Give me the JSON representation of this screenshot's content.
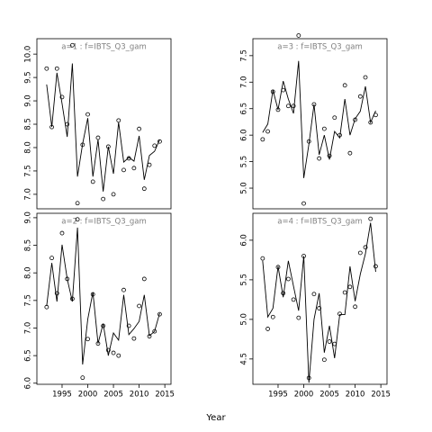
{
  "xlabel": "Year",
  "chart_data": [
    {
      "type": "line",
      "title": "a=1  :  f=IBTS_Q3_gam",
      "x": [
        1992,
        1993,
        1994,
        1995,
        1996,
        1997,
        1998,
        1999,
        2000,
        2001,
        2002,
        2003,
        2004,
        2005,
        2006,
        2007,
        2008,
        2009,
        2010,
        2011,
        2012,
        2013,
        2014
      ],
      "series": [
        {
          "marker": "circle",
          "color": "#000000",
          "values": [
            9.69,
            8.44,
            9.69,
            9.08,
            8.5,
            10.19,
            6.81,
            8.06,
            8.71,
            7.27,
            8.21,
            6.9,
            8.02,
            7.0,
            8.58,
            7.52,
            7.77,
            7.56,
            8.4,
            7.12,
            7.63,
            8.04,
            8.13
          ]
        },
        {
          "marker": "none",
          "color": "#000000",
          "values": [
            9.35,
            8.44,
            9.6,
            8.94,
            8.23,
            9.8,
            7.38,
            8.08,
            8.63,
            7.38,
            8.17,
            7.06,
            8.02,
            7.44,
            8.54,
            7.69,
            7.79,
            7.71,
            8.25,
            7.31,
            7.83,
            7.92,
            8.17
          ]
        }
      ],
      "xlim": [
        1990.1,
        2016.2
      ],
      "ylim": [
        6.69,
        10.33
      ],
      "yticks": [
        {
          "value": 7,
          "label": "7.0"
        },
        7.5,
        {
          "value": 8,
          "label": "8.0"
        },
        8.5,
        {
          "value": 9,
          "label": "9.0"
        },
        9.5,
        {
          "value": 10,
          "label": "10.0"
        }
      ]
    },
    {
      "type": "line",
      "title": "a=3  :  f=IBTS_Q3_gam",
      "x": [
        1992,
        1993,
        1994,
        1995,
        1996,
        1997,
        1998,
        1999,
        2000,
        2001,
        2002,
        2003,
        2004,
        2005,
        2006,
        2007,
        2008,
        2009,
        2010,
        2011,
        2012,
        2013,
        2014
      ],
      "series": [
        {
          "marker": "circle",
          "color": "#000000",
          "values": [
            5.92,
            6.07,
            6.82,
            6.48,
            6.85,
            6.55,
            6.55,
            7.88,
            4.71,
            5.88,
            6.58,
            5.56,
            6.12,
            5.61,
            6.33,
            6.0,
            6.94,
            5.66,
            6.29,
            6.73,
            7.09,
            6.24,
            6.38
          ]
        },
        {
          "marker": "none",
          "color": "#000000",
          "values": [
            6.05,
            6.21,
            6.85,
            6.48,
            7.02,
            6.68,
            6.41,
            7.4,
            5.19,
            5.83,
            6.58,
            5.63,
            6.0,
            5.54,
            6.07,
            5.95,
            6.68,
            6.0,
            6.31,
            6.45,
            6.92,
            6.24,
            6.46
          ]
        }
      ],
      "xlim": [
        1990.1,
        2016.2
      ],
      "ylim": [
        4.61,
        7.82
      ],
      "yticks": [
        {
          "value": 5,
          "label": "5.0"
        },
        5.5,
        {
          "value": 6,
          "label": "6.0"
        },
        6.5,
        {
          "value": 7,
          "label": "7.0"
        },
        7.5
      ]
    },
    {
      "type": "line",
      "title": "a=2  :  f=IBTS_Q3_gam",
      "x": [
        1992,
        1993,
        1994,
        1995,
        1996,
        1997,
        1998,
        1999,
        2000,
        2001,
        2002,
        2003,
        2004,
        2005,
        2006,
        2007,
        2008,
        2009,
        2010,
        2011,
        2012,
        2013,
        2014
      ],
      "series": [
        {
          "marker": "circle",
          "color": "#000000",
          "values": [
            7.38,
            8.27,
            7.63,
            8.72,
            7.89,
            7.53,
            8.97,
            6.1,
            6.8,
            7.61,
            6.72,
            7.04,
            6.6,
            6.55,
            6.5,
            7.69,
            7.04,
            6.81,
            7.4,
            7.89,
            6.85,
            6.94,
            7.25
          ]
        },
        {
          "marker": "none",
          "color": "#000000",
          "values": [
            7.4,
            8.18,
            7.48,
            8.51,
            7.89,
            7.48,
            8.82,
            6.34,
            7.16,
            7.65,
            6.72,
            7.08,
            6.5,
            6.91,
            6.78,
            7.6,
            6.88,
            6.99,
            7.12,
            7.6,
            6.86,
            6.94,
            7.27
          ]
        }
      ],
      "xlim": [
        1990.1,
        2016.2
      ],
      "ylim": [
        5.98,
        9.08
      ],
      "xticks": [
        1995,
        2000,
        2005,
        2010,
        2015
      ],
      "yticks": [
        {
          "value": 6,
          "label": "6.0"
        },
        6.5,
        {
          "value": 7,
          "label": "7.0"
        },
        7.5,
        {
          "value": 8,
          "label": "8.0"
        },
        8.5,
        {
          "value": 9,
          "label": "9.0"
        }
      ]
    },
    {
      "type": "line",
      "title": "a=4  :  f=IBTS_Q3_gam",
      "x": [
        1992,
        1993,
        1994,
        1995,
        1996,
        1997,
        1998,
        1999,
        2000,
        2001,
        2002,
        2003,
        2004,
        2005,
        2006,
        2007,
        2008,
        2009,
        2010,
        2011,
        2012,
        2013,
        2014
      ],
      "series": [
        {
          "marker": "circle",
          "color": "#000000",
          "values": [
            5.77,
            4.88,
            5.03,
            5.66,
            5.33,
            5.51,
            5.25,
            5.02,
            5.8,
            4.26,
            5.32,
            5.14,
            4.49,
            4.72,
            4.69,
            5.07,
            5.34,
            5.41,
            5.16,
            5.84,
            5.91,
            6.27,
            5.67
          ]
        },
        {
          "marker": "none",
          "color": "#000000",
          "values": [
            5.74,
            5.03,
            5.14,
            5.67,
            5.28,
            5.74,
            5.42,
            5.11,
            5.8,
            4.2,
            5.0,
            5.33,
            4.58,
            4.92,
            4.51,
            5.06,
            5.06,
            5.67,
            5.23,
            5.57,
            5.83,
            6.22,
            5.6
          ]
        }
      ],
      "xlim": [
        1990.1,
        2016.2
      ],
      "ylim": [
        4.18,
        6.34
      ],
      "xticks": [
        1995,
        2000,
        2005,
        2010,
        2015
      ],
      "yticks": [
        4.5,
        {
          "value": 5,
          "label": "5.0"
        },
        5.5,
        {
          "value": 6,
          "label": "6.0"
        }
      ]
    }
  ]
}
